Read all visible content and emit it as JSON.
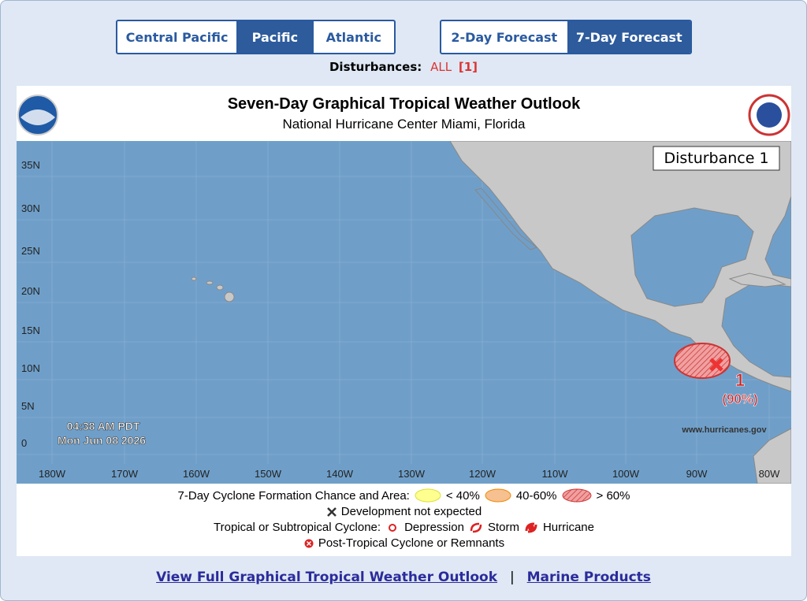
{
  "tabs": {
    "basins": [
      {
        "label": "Central Pacific",
        "selected": false
      },
      {
        "label": "Pacific",
        "selected": true
      },
      {
        "label": "Atlantic",
        "selected": false
      }
    ],
    "forecasts": [
      {
        "label": "2-Day Forecast",
        "selected": false
      },
      {
        "label": "7-Day Forecast",
        "selected": true
      }
    ]
  },
  "disturbances": {
    "label": "Disturbances:",
    "all": "ALL",
    "count": "[1]"
  },
  "map": {
    "title": "Seven-Day Graphical Tropical Weather Outlook",
    "subtitle": "National Hurricane Center  Miami, Florida",
    "panel_label": "Disturbance 1",
    "time": "04:38 AM PDT",
    "date": "Mon Jun 08 2026",
    "website": "www.hurricanes.gov",
    "lat_labels": [
      "35N",
      "30N",
      "25N",
      "20N",
      "15N",
      "10N",
      "5N",
      "0"
    ],
    "lon_labels": [
      "180W",
      "170W",
      "160W",
      "150W",
      "140W",
      "130W",
      "120W",
      "110W",
      "100W",
      "90W",
      "80W"
    ],
    "disturbance": {
      "id": "1",
      "chance": "(90%)"
    }
  },
  "legend": {
    "formation_label": "7-Day Cyclone Formation Chance and Area:",
    "low": "< 40%",
    "medium": "40-60%",
    "high": "> 60%",
    "not_expected": "Development not expected",
    "cyclone_label": "Tropical or Subtropical Cyclone:",
    "depression": "Depression",
    "storm": "Storm",
    "hurricane": "Hurricane",
    "post_tropical": "Post-Tropical Cyclone or Remnants"
  },
  "links": [
    "View Full Graphical Tropical Weather Outlook",
    "Marine Products"
  ],
  "separator": "|"
}
